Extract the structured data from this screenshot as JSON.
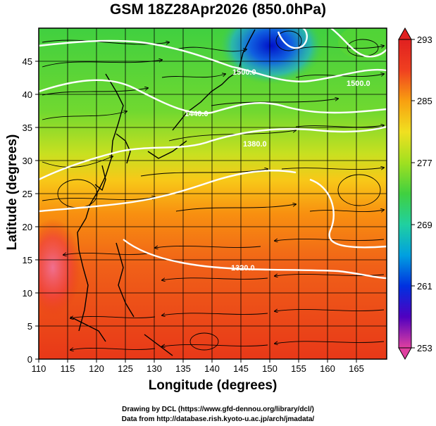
{
  "title": "GSM 18Z28Apr2026 (850.0hPa)",
  "x_axis": {
    "label": "Longitude (degrees)",
    "range": [
      110,
      170
    ],
    "ticks": [
      "110",
      "115",
      "120",
      "125",
      "130",
      "135",
      "140",
      "145",
      "150",
      "155",
      "160",
      "165"
    ]
  },
  "y_axis": {
    "label": "Latitude  (degrees)",
    "range": [
      0,
      50
    ],
    "ticks": [
      "0",
      "5",
      "10",
      "15",
      "20",
      "25",
      "30",
      "35",
      "40",
      "45"
    ]
  },
  "colorbar": {
    "labels": [
      "293",
      "285",
      "277",
      "269",
      "261",
      "253"
    ],
    "range": [
      253,
      293
    ],
    "colors": [
      "#e040a0",
      "#5000c0",
      "#0030e0",
      "#00a0e0",
      "#20d0a0",
      "#40d040",
      "#a0e020",
      "#f0e020",
      "#f8a010",
      "#f04020",
      "#e02020"
    ]
  },
  "contours": [
    {
      "label": "1500.0"
    },
    {
      "label": "1440.0"
    },
    {
      "label": "1380.0"
    },
    {
      "label": "1320.0"
    },
    {
      "label": "1500.0"
    }
  ],
  "credits": {
    "line1": "Drawing by DCL (https://www.gfd-dennou.org/library/dcl/)",
    "line2": "Data from http://database.rish.kyoto-u.ac.jp/arch/jmadata/"
  }
}
